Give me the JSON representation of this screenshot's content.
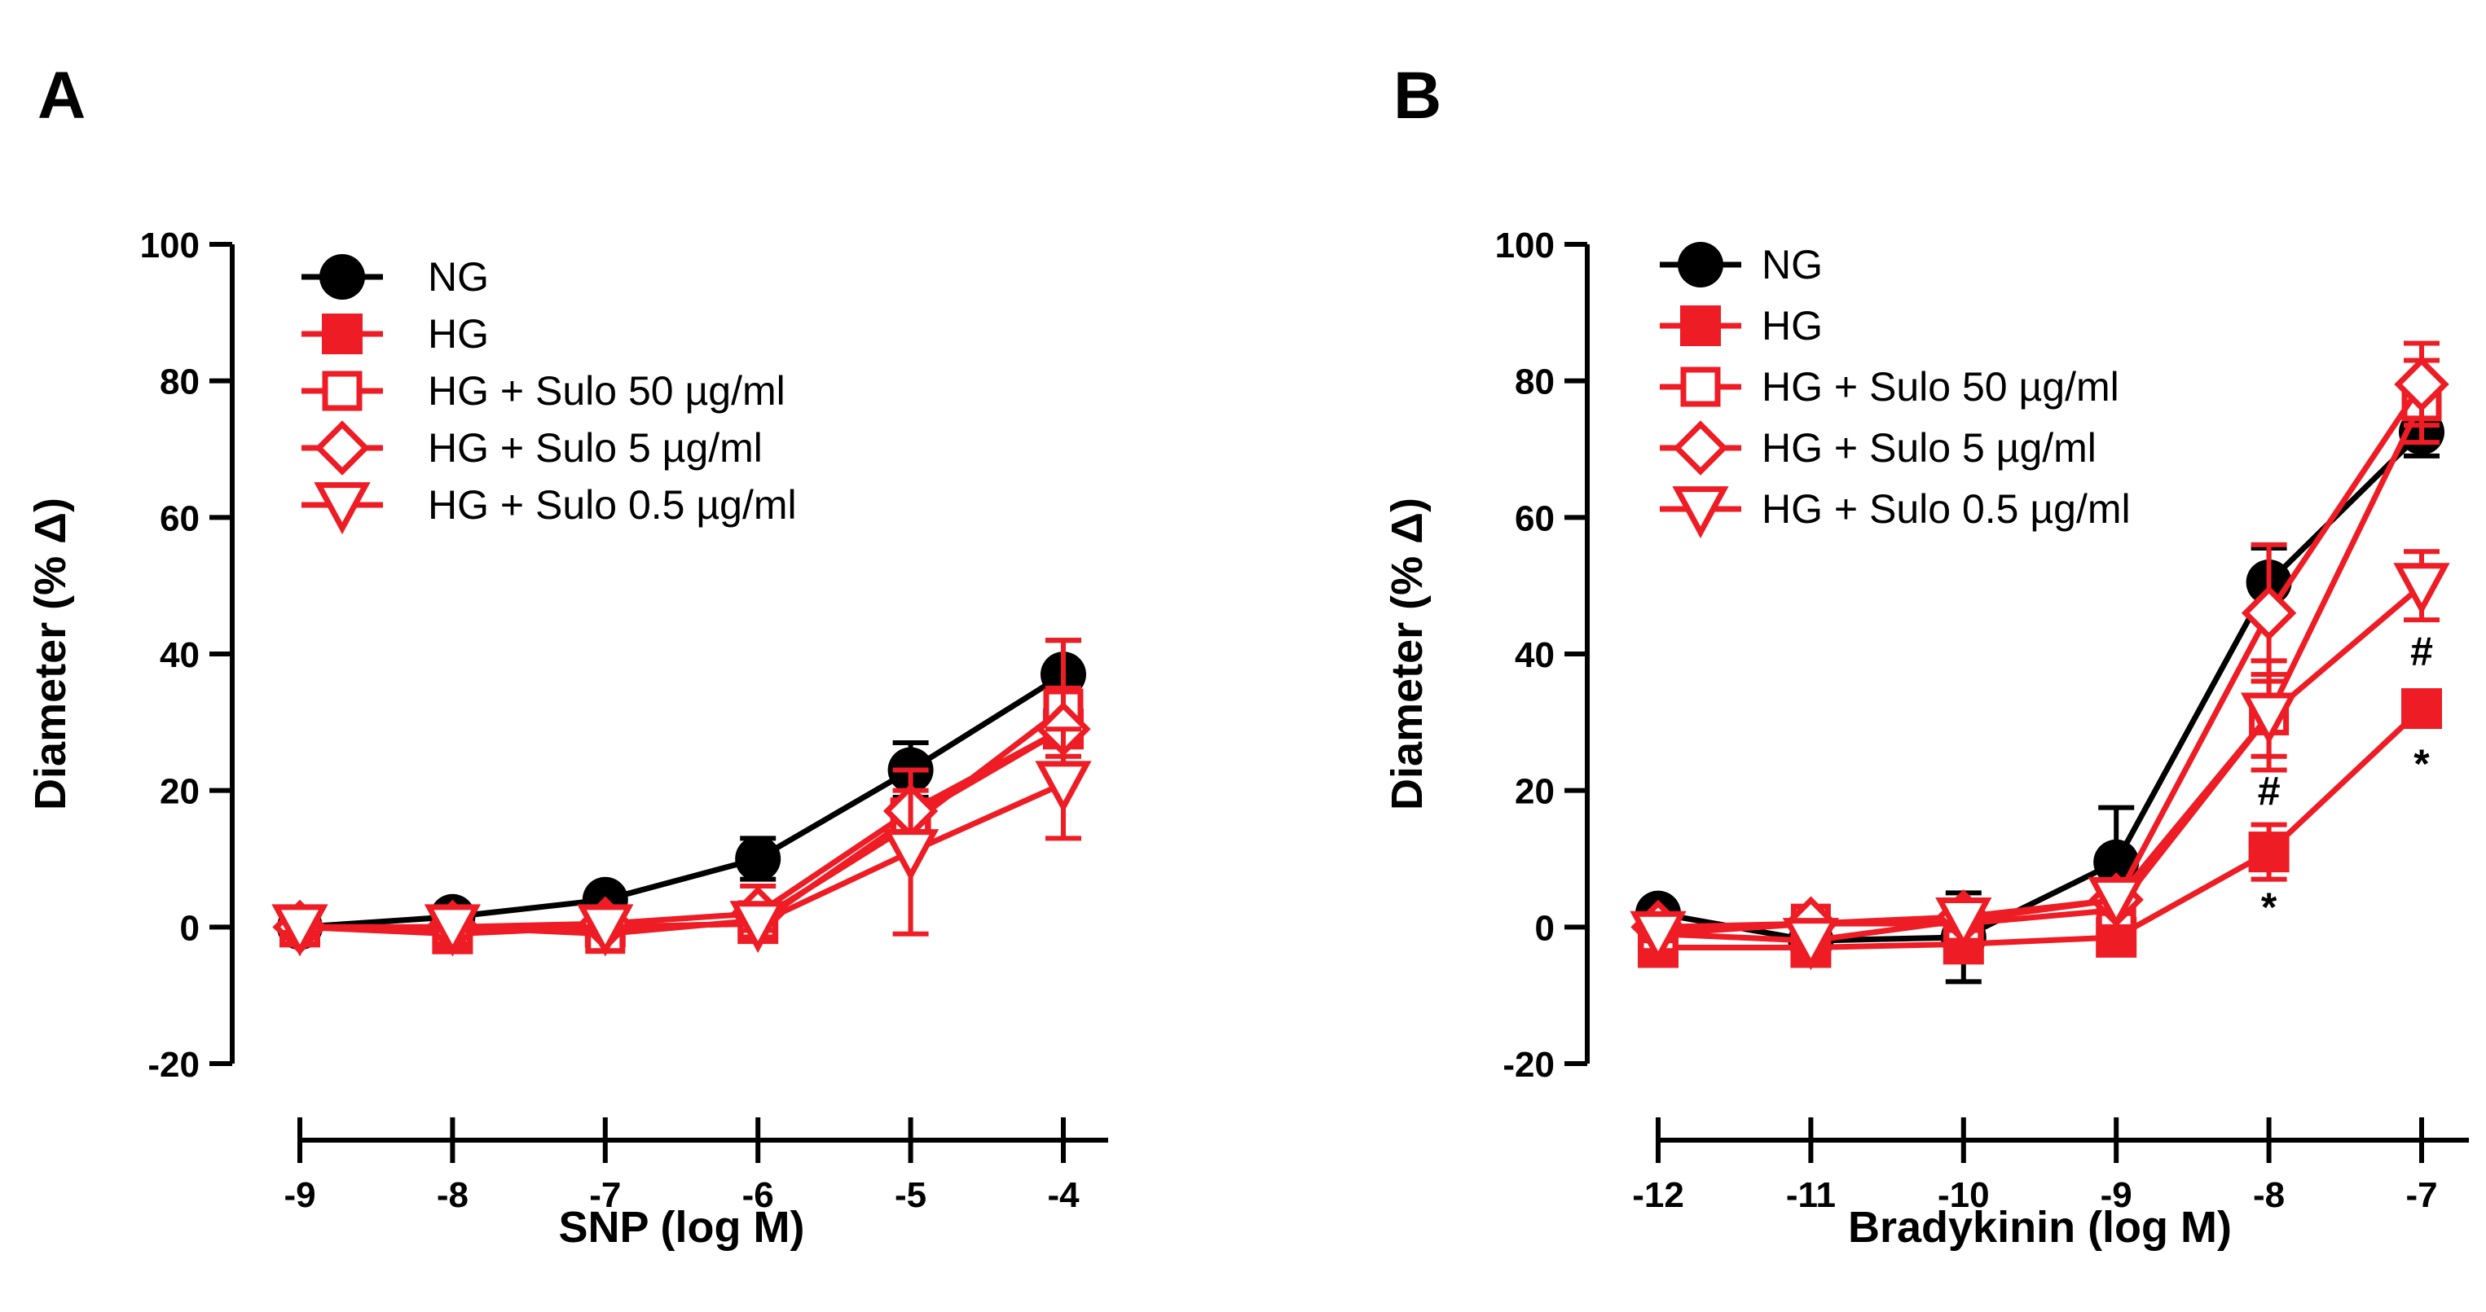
{
  "colors": {
    "ng": "#000000",
    "hg": "#ee1c24"
  },
  "chart_data": [
    {
      "panel": "A",
      "type": "line",
      "xlabel": "SNP (log M)",
      "ylabel": "Diameter (% Δ)",
      "x": [
        -9,
        -8,
        -7,
        -6,
        -5,
        -4
      ],
      "xlim": [
        -9,
        -4
      ],
      "ylim": [
        -20,
        100
      ],
      "xticks": [
        -9,
        -8,
        -7,
        -6,
        -5,
        -4
      ],
      "yticks": [
        -20,
        0,
        20,
        40,
        60,
        80,
        100
      ],
      "legend_position": "top-left",
      "series": [
        {
          "name": "NG",
          "marker": "circle",
          "color": "#000000",
          "values": [
            0,
            1.5,
            4,
            10,
            23,
            37
          ],
          "error": [
            0.5,
            0.5,
            0.8,
            3,
            4,
            5
          ]
        },
        {
          "name": "HG",
          "marker": "square-filled",
          "color": "#ee1c24",
          "values": [
            0,
            -1,
            0,
            0.5,
            16,
            29
          ],
          "error": [
            1,
            1,
            1,
            1.5,
            2,
            4
          ]
        },
        {
          "name": "HG + Sulo 50 µg/ml",
          "marker": "square-open",
          "color": "#ee1c24",
          "values": [
            0,
            0,
            -1,
            1,
            15,
            32
          ],
          "error": [
            1.5,
            0.5,
            0.8,
            1,
            3,
            10
          ]
        },
        {
          "name": "HG + Sulo 5 µg/ml",
          "marker": "diamond-open",
          "color": "#ee1c24",
          "values": [
            0,
            0,
            0.5,
            2,
            17,
            29
          ],
          "error": [
            1,
            0.5,
            0.8,
            4,
            3,
            6
          ]
        },
        {
          "name": "HG + Sulo 0.5 µg/ml",
          "marker": "triangle-down-open",
          "color": "#ee1c24",
          "values": [
            0,
            0,
            0,
            0.5,
            11,
            21
          ],
          "error": [
            0.8,
            0.5,
            0.5,
            1,
            12,
            8
          ]
        }
      ],
      "annotations": []
    },
    {
      "panel": "B",
      "type": "line",
      "xlabel": "Bradykinin (log M)",
      "ylabel": "Diameter (% Δ)",
      "x": [
        -12,
        -11,
        -10,
        -9,
        -8,
        -7
      ],
      "xlim": [
        -12,
        -7
      ],
      "ylim": [
        -20,
        100
      ],
      "xticks": [
        -12,
        -11,
        -10,
        -9,
        -8,
        -7
      ],
      "yticks": [
        -20,
        0,
        20,
        40,
        60,
        80,
        100
      ],
      "legend_position": "top-left",
      "series": [
        {
          "name": "NG",
          "marker": "circle",
          "color": "#000000",
          "values": [
            2,
            -2,
            -1.5,
            9.5,
            50.5,
            72.5
          ],
          "error": [
            1.5,
            2,
            6.5,
            8,
            5,
            3.5
          ]
        },
        {
          "name": "HG",
          "marker": "square-filled",
          "color": "#ee1c24",
          "values": [
            -3,
            -3,
            -2.5,
            -1.5,
            11,
            32
          ],
          "error": [
            1,
            1,
            1,
            1.5,
            4,
            2
          ]
        },
        {
          "name": "HG + Sulo 50 µg/ml",
          "marker": "square-open",
          "color": "#ee1c24",
          "values": [
            -1,
            0.5,
            0.5,
            2.5,
            31,
            77
          ],
          "error": [
            1,
            1,
            1,
            2,
            8,
            6
          ]
        },
        {
          "name": "HG + Sulo 5 µg/ml",
          "marker": "diamond-open",
          "color": "#ee1c24",
          "values": [
            0,
            0.5,
            1.5,
            4,
            46,
            79.5
          ],
          "error": [
            1,
            1.5,
            1.5,
            2,
            10,
            6
          ]
        },
        {
          "name": "HG + Sulo 0.5 µg/ml",
          "marker": "triangle-down-open",
          "color": "#ee1c24",
          "values": [
            -1,
            -2,
            1,
            4,
            31,
            50
          ],
          "error": [
            1,
            1,
            1.5,
            2,
            6,
            5
          ]
        }
      ],
      "annotations": [
        {
          "text": "#",
          "x": -8,
          "y": 20
        },
        {
          "text": "*",
          "x": -8,
          "y": 3
        },
        {
          "text": "#",
          "x": -7,
          "y": 40.5
        },
        {
          "text": "*",
          "x": -7,
          "y": 24
        }
      ]
    }
  ]
}
